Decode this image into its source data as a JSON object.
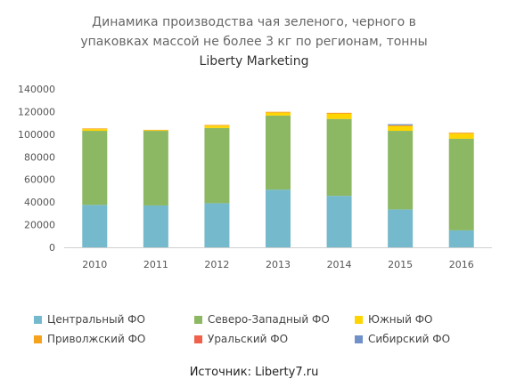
{
  "chart_data": {
    "type": "bar",
    "stacked": true,
    "title_lines": [
      "Динамика производства чая зеленого, черного в",
      "упаковках массой не более 3 кг по регионам, тонны"
    ],
    "subtitle": "Liberty Marketing",
    "source": "Источник: Liberty7.ru",
    "categories": [
      "2010",
      "2011",
      "2012",
      "2013",
      "2014",
      "2015",
      "2016"
    ],
    "ylim": [
      0,
      140000
    ],
    "yticks": [
      "0",
      "20000",
      "40000",
      "60000",
      "80000",
      "100000",
      "120000",
      "140000"
    ],
    "grid": false,
    "legend_position": "bottom",
    "series": [
      {
        "name": "Центральный ФО",
        "color": "#75b9cc",
        "values": [
          37500,
          37000,
          39000,
          51000,
          45500,
          33500,
          15000
        ]
      },
      {
        "name": "Северо-Западный ФО",
        "color": "#8cb863",
        "values": [
          65500,
          66000,
          66500,
          65500,
          68000,
          69500,
          81000
        ]
      },
      {
        "name": "Южный ФО",
        "color": "#ffd500",
        "values": [
          1500,
          500,
          2000,
          2500,
          4500,
          4000,
          4500
        ]
      },
      {
        "name": "Приволжский ФО",
        "color": "#f7a21c",
        "values": [
          600,
          400,
          700,
          800,
          900,
          900,
          900
        ]
      },
      {
        "name": "Уральский ФО",
        "color": "#f0604a",
        "values": [
          0,
          0,
          0,
          0,
          0,
          0,
          0
        ]
      },
      {
        "name": "Сибирский ФО",
        "color": "#6f90c8",
        "values": [
          0,
          0,
          0,
          0,
          0,
          1000,
          0
        ]
      }
    ]
  }
}
